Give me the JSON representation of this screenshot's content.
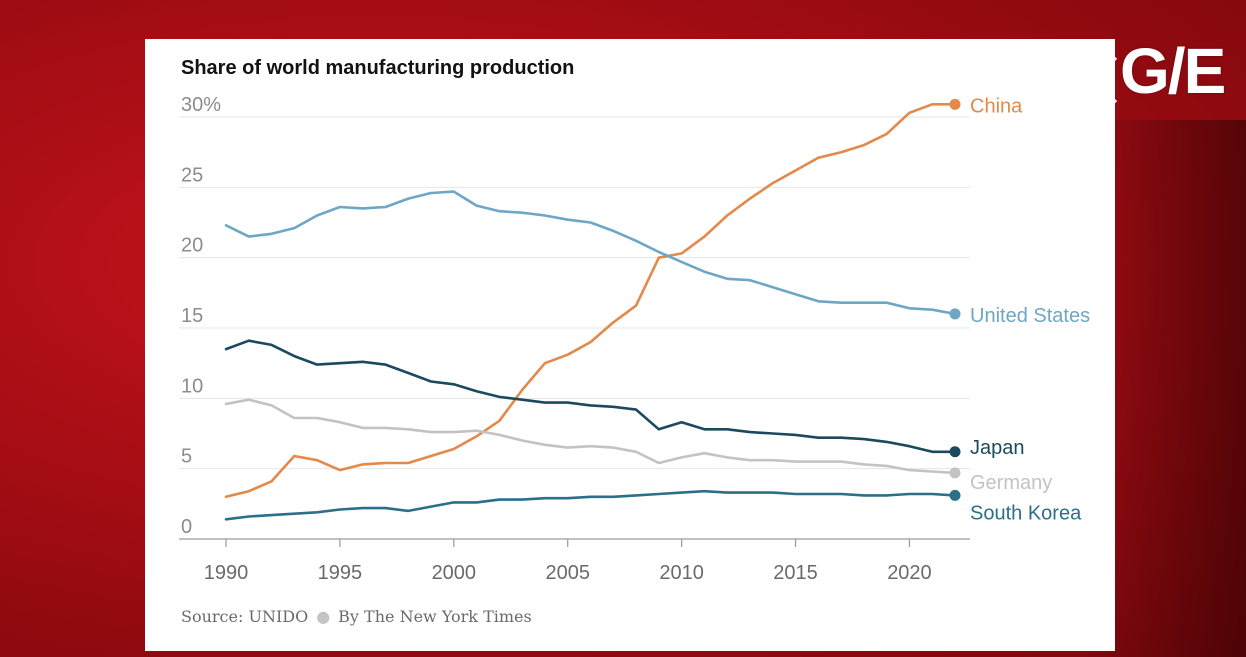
{
  "chart_data": {
    "type": "line",
    "title": "Share of world manufacturing production",
    "xlabel": "",
    "ylabel": "",
    "xlim": [
      1990,
      2022
    ],
    "ylim": [
      0,
      30
    ],
    "x_ticks": [
      "1990",
      "1995",
      "2000",
      "2005",
      "2010",
      "2015",
      "2020"
    ],
    "y_ticks": [
      "0",
      "5",
      "10",
      "15",
      "20",
      "25",
      "30%"
    ],
    "grid": true,
    "x": [
      1990,
      1991,
      1992,
      1993,
      1994,
      1995,
      1996,
      1997,
      1998,
      1999,
      2000,
      2001,
      2002,
      2003,
      2004,
      2005,
      2006,
      2007,
      2008,
      2009,
      2010,
      2011,
      2012,
      2013,
      2014,
      2015,
      2016,
      2017,
      2018,
      2019,
      2020,
      2021,
      2022
    ],
    "series": [
      {
        "name": "China",
        "color": "#e3894a",
        "values": [
          3.0,
          3.4,
          4.1,
          5.9,
          5.6,
          4.9,
          5.3,
          5.4,
          5.4,
          5.9,
          6.4,
          7.3,
          8.4,
          10.6,
          12.5,
          13.1,
          14.0,
          15.4,
          16.6,
          20.0,
          20.3,
          21.5,
          23.0,
          24.2,
          25.3,
          26.2,
          27.1,
          27.5,
          28.0,
          28.8,
          30.3,
          30.9,
          30.9
        ]
      },
      {
        "name": "United States",
        "color": "#6ea7c4",
        "values": [
          22.3,
          21.5,
          21.7,
          22.1,
          23.0,
          23.6,
          23.5,
          23.6,
          24.2,
          24.6,
          24.7,
          23.7,
          23.3,
          23.2,
          23.0,
          22.7,
          22.5,
          21.9,
          21.2,
          20.4,
          19.7,
          19.0,
          18.5,
          18.4,
          17.9,
          17.4,
          16.9,
          16.8,
          16.8,
          16.8,
          16.4,
          16.3,
          16.0
        ]
      },
      {
        "name": "Japan",
        "color": "#1b4a5e",
        "values": [
          13.5,
          14.1,
          13.8,
          13.0,
          12.4,
          12.5,
          12.6,
          12.4,
          11.8,
          11.2,
          11.0,
          10.5,
          10.1,
          9.9,
          9.7,
          9.7,
          9.5,
          9.4,
          9.2,
          7.8,
          8.3,
          7.8,
          7.8,
          7.6,
          7.5,
          7.4,
          7.2,
          7.2,
          7.1,
          6.9,
          6.6,
          6.2,
          6.2
        ]
      },
      {
        "name": "Germany",
        "color": "#c3c3c3",
        "values": [
          9.6,
          9.9,
          9.5,
          8.6,
          8.6,
          8.3,
          7.9,
          7.9,
          7.8,
          7.6,
          7.6,
          7.7,
          7.4,
          7.0,
          6.7,
          6.5,
          6.6,
          6.5,
          6.2,
          5.4,
          5.8,
          6.1,
          5.8,
          5.6,
          5.6,
          5.5,
          5.5,
          5.5,
          5.3,
          5.2,
          4.9,
          4.8,
          4.7
        ]
      },
      {
        "name": "South Korea",
        "color": "#2c6f89",
        "values": [
          1.4,
          1.6,
          1.7,
          1.8,
          1.9,
          2.1,
          2.2,
          2.2,
          2.0,
          2.3,
          2.6,
          2.6,
          2.8,
          2.8,
          2.9,
          2.9,
          3.0,
          3.0,
          3.1,
          3.2,
          3.3,
          3.4,
          3.3,
          3.3,
          3.3,
          3.2,
          3.2,
          3.2,
          3.1,
          3.1,
          3.2,
          3.2,
          3.1
        ]
      }
    ]
  },
  "source": {
    "left": "Source: UNIDO",
    "right": "By The New York Times"
  },
  "watermark": {
    "text": "G/E"
  }
}
